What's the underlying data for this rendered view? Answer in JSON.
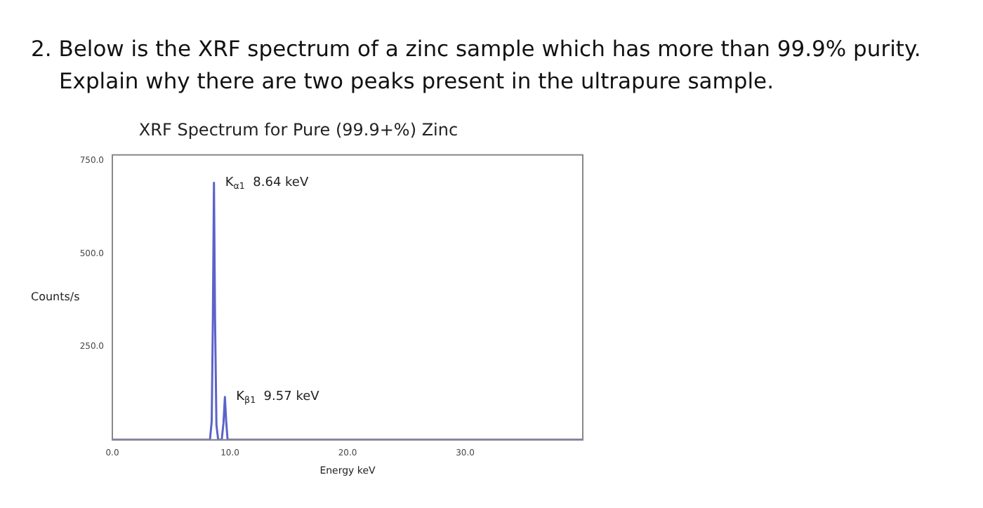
{
  "chart_data": {
    "type": "line",
    "title": "XRF Spectrum for Pure (99.9+%) Zinc",
    "xlabel": "Energy keV",
    "ylabel": "Counts/s",
    "annotations": [
      "2. Below is the XRF spectrum of a zinc sample which has more than 99.9% purity.",
      "Explain why there are two peaks present in the ultrapure sample.",
      {
        "text": "K$_{α1}$  8.64 keV",
        "x": 8.64,
        "y": 690
      },
      {
        "text": "K$_{β1}$  9.57 keV",
        "x": 9.57,
        "y": 115
      }
    ],
    "series": [
      {
        "color": "#5b63c9",
        "x": [
          0,
          8.3,
          8.45,
          8.55,
          8.64,
          8.73,
          8.85,
          9.0,
          9.3,
          9.45,
          9.57,
          9.68,
          9.8,
          40
        ],
        "values": [
          0,
          0,
          50,
          330,
          690,
          330,
          40,
          0,
          0,
          45,
          115,
          50,
          0,
          0
        ]
      }
    ],
    "xlim": [
      0,
      40
    ],
    "xticks": [
      {
        "value": 0,
        "label": "0.0"
      },
      {
        "value": 10,
        "label": "10.0"
      },
      {
        "value": 20,
        "label": "20.0"
      },
      {
        "value": 30,
        "label": "30.0"
      }
    ],
    "ylim": [
      0,
      765
    ],
    "yticks": [
      {
        "value": 250,
        "label": "250.0"
      },
      {
        "value": 500,
        "label": "500.0"
      },
      {
        "value": 750,
        "label": "750.0"
      }
    ],
    "grid": false,
    "legend": false,
    "marker": "none",
    "line_style": "solid"
  }
}
